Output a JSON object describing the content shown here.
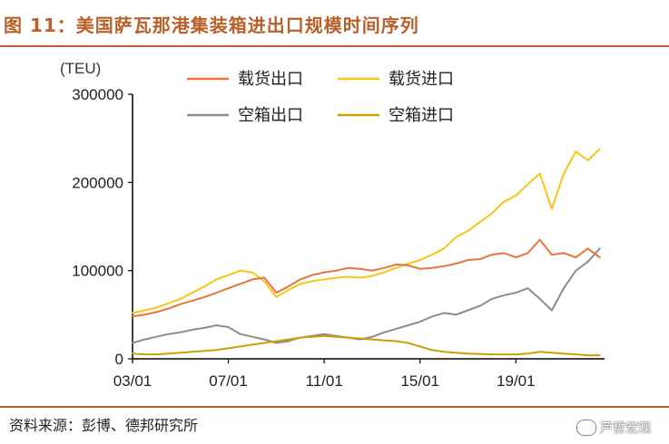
{
  "figure": {
    "title": "图 11：美国萨瓦那港集装箱进出口规模时间序列",
    "unit_label": "(TEU)",
    "source": "资料来源：彭博、德邦研究所",
    "watermark": "芦哲宏观"
  },
  "chart_data": {
    "type": "line",
    "title": "图 11：美国萨瓦那港集装箱进出口规模时间序列",
    "xlabel": "",
    "ylabel": "(TEU)",
    "xlim": [
      2003.0,
      2022.7
    ],
    "ylim": [
      0,
      300000
    ],
    "x_ticks": [
      {
        "value": 2003.0,
        "label": "03/01"
      },
      {
        "value": 2007.0,
        "label": "07/01"
      },
      {
        "value": 2011.0,
        "label": "11/01"
      },
      {
        "value": 2015.0,
        "label": "15/01"
      },
      {
        "value": 2019.0,
        "label": "19/01"
      }
    ],
    "y_ticks": [
      0,
      100000,
      200000,
      300000
    ],
    "y_tick_labels": [
      "0",
      "100000",
      "200000",
      "300000"
    ],
    "grid": false,
    "legend_position": "top-center",
    "series": [
      {
        "name": "载货出口",
        "color": "#e8743b",
        "x": [
          2003.0,
          2003.5,
          2004.0,
          2004.5,
          2005.0,
          2005.5,
          2006.0,
          2006.5,
          2007.0,
          2007.5,
          2008.0,
          2008.5,
          2009.0,
          2009.5,
          2010.0,
          2010.5,
          2011.0,
          2011.5,
          2012.0,
          2012.5,
          2013.0,
          2013.5,
          2014.0,
          2014.5,
          2015.0,
          2015.5,
          2016.0,
          2016.5,
          2017.0,
          2017.5,
          2018.0,
          2018.5,
          2019.0,
          2019.5,
          2020.0,
          2020.5,
          2021.0,
          2021.5,
          2022.0,
          2022.5
        ],
        "y": [
          48000,
          50000,
          53000,
          57000,
          62000,
          66000,
          70000,
          75000,
          80000,
          85000,
          90000,
          92000,
          75000,
          82000,
          90000,
          95000,
          98000,
          100000,
          103000,
          102000,
          100000,
          103000,
          107000,
          106000,
          102000,
          103000,
          105000,
          108000,
          112000,
          113000,
          118000,
          120000,
          115000,
          120000,
          135000,
          118000,
          120000,
          115000,
          125000,
          115000
        ]
      },
      {
        "name": "载货进口",
        "color": "#f5c518",
        "x": [
          2003.0,
          2003.5,
          2004.0,
          2004.5,
          2005.0,
          2005.5,
          2006.0,
          2006.5,
          2007.0,
          2007.5,
          2008.0,
          2008.5,
          2009.0,
          2009.5,
          2010.0,
          2010.5,
          2011.0,
          2011.5,
          2012.0,
          2012.5,
          2013.0,
          2013.5,
          2014.0,
          2014.5,
          2015.0,
          2015.5,
          2016.0,
          2016.5,
          2017.0,
          2017.5,
          2018.0,
          2018.5,
          2019.0,
          2019.5,
          2020.0,
          2020.5,
          2021.0,
          2021.5,
          2022.0,
          2022.5
        ],
        "y": [
          52000,
          55000,
          58000,
          63000,
          68000,
          75000,
          82000,
          90000,
          95000,
          100000,
          98000,
          88000,
          70000,
          78000,
          85000,
          88000,
          90000,
          92000,
          93000,
          92000,
          94000,
          98000,
          103000,
          108000,
          112000,
          118000,
          125000,
          138000,
          145000,
          155000,
          165000,
          178000,
          185000,
          198000,
          210000,
          170000,
          210000,
          235000,
          225000,
          238000
        ]
      },
      {
        "name": "空箱出口",
        "color": "#8c8c8c",
        "x": [
          2003.0,
          2003.5,
          2004.0,
          2004.5,
          2005.0,
          2005.5,
          2006.0,
          2006.5,
          2007.0,
          2007.5,
          2008.0,
          2008.5,
          2009.0,
          2009.5,
          2010.0,
          2010.5,
          2011.0,
          2011.5,
          2012.0,
          2012.5,
          2013.0,
          2013.5,
          2014.0,
          2014.5,
          2015.0,
          2015.5,
          2016.0,
          2016.5,
          2017.0,
          2017.5,
          2018.0,
          2018.5,
          2019.0,
          2019.5,
          2020.0,
          2020.5,
          2021.0,
          2021.5,
          2022.0,
          2022.5
        ],
        "y": [
          18000,
          22000,
          25000,
          28000,
          30000,
          33000,
          35000,
          38000,
          36000,
          28000,
          25000,
          22000,
          18000,
          20000,
          24000,
          26000,
          28000,
          26000,
          24000,
          22000,
          25000,
          30000,
          34000,
          38000,
          42000,
          48000,
          52000,
          50000,
          55000,
          60000,
          68000,
          72000,
          75000,
          80000,
          68000,
          55000,
          80000,
          100000,
          110000,
          125000
        ]
      },
      {
        "name": "空箱进口",
        "color": "#c9a100",
        "x": [
          2003.0,
          2003.5,
          2004.0,
          2004.5,
          2005.0,
          2005.5,
          2006.0,
          2006.5,
          2007.0,
          2007.5,
          2008.0,
          2008.5,
          2009.0,
          2009.5,
          2010.0,
          2010.5,
          2011.0,
          2011.5,
          2012.0,
          2012.5,
          2013.0,
          2013.5,
          2014.0,
          2014.5,
          2015.0,
          2015.5,
          2016.0,
          2016.5,
          2017.0,
          2017.5,
          2018.0,
          2018.5,
          2019.0,
          2019.5,
          2020.0,
          2020.5,
          2021.0,
          2021.5,
          2022.0,
          2022.5
        ],
        "y": [
          6000,
          5000,
          5000,
          6000,
          7000,
          8000,
          9000,
          10000,
          12000,
          14000,
          16000,
          18000,
          20000,
          22000,
          24000,
          25000,
          26000,
          25000,
          24000,
          23000,
          22000,
          21000,
          20000,
          18000,
          14000,
          10000,
          8000,
          7000,
          6000,
          5500,
          5000,
          5000,
          5000,
          6000,
          8000,
          7000,
          6000,
          5000,
          4000,
          4000
        ]
      }
    ]
  }
}
